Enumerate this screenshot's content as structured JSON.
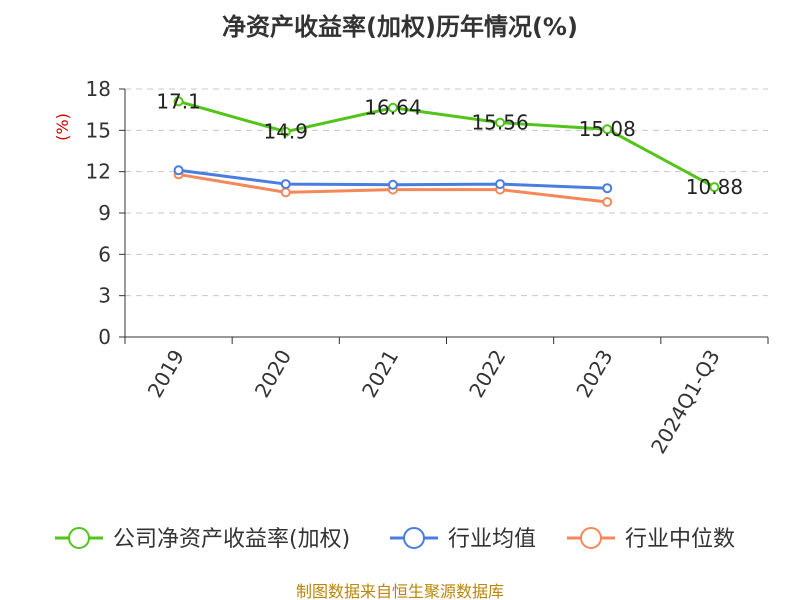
{
  "chart_data": {
    "type": "line",
    "title": "净资产收益率(加权)历年情况(%)",
    "ylabel": "(%)",
    "xlabel": "",
    "categories": [
      "2019",
      "2020",
      "2021",
      "2022",
      "2023",
      "2024Q1-Q3"
    ],
    "ylim": [
      0,
      18
    ],
    "yticks": [
      0,
      3,
      6,
      9,
      12,
      15,
      18
    ],
    "grid": true,
    "legend_position": "bottom",
    "series": [
      {
        "name": "公司净资产收益率(加权)",
        "color": "#52c41a",
        "values": [
          17.1,
          14.9,
          16.64,
          15.56,
          15.08,
          10.88
        ],
        "labels": [
          "17.1",
          "14.9",
          "16.64",
          "15.56",
          "15.08",
          "10.88"
        ]
      },
      {
        "name": "行业均值",
        "color": "#4a7de0",
        "values": [
          12.1,
          11.1,
          11.05,
          11.1,
          10.8,
          null
        ]
      },
      {
        "name": "行业中位数",
        "color": "#f4885a",
        "values": [
          11.8,
          10.5,
          10.7,
          10.7,
          9.8,
          null
        ]
      }
    ]
  },
  "source_note": "制图数据来自恒生聚源数据库"
}
